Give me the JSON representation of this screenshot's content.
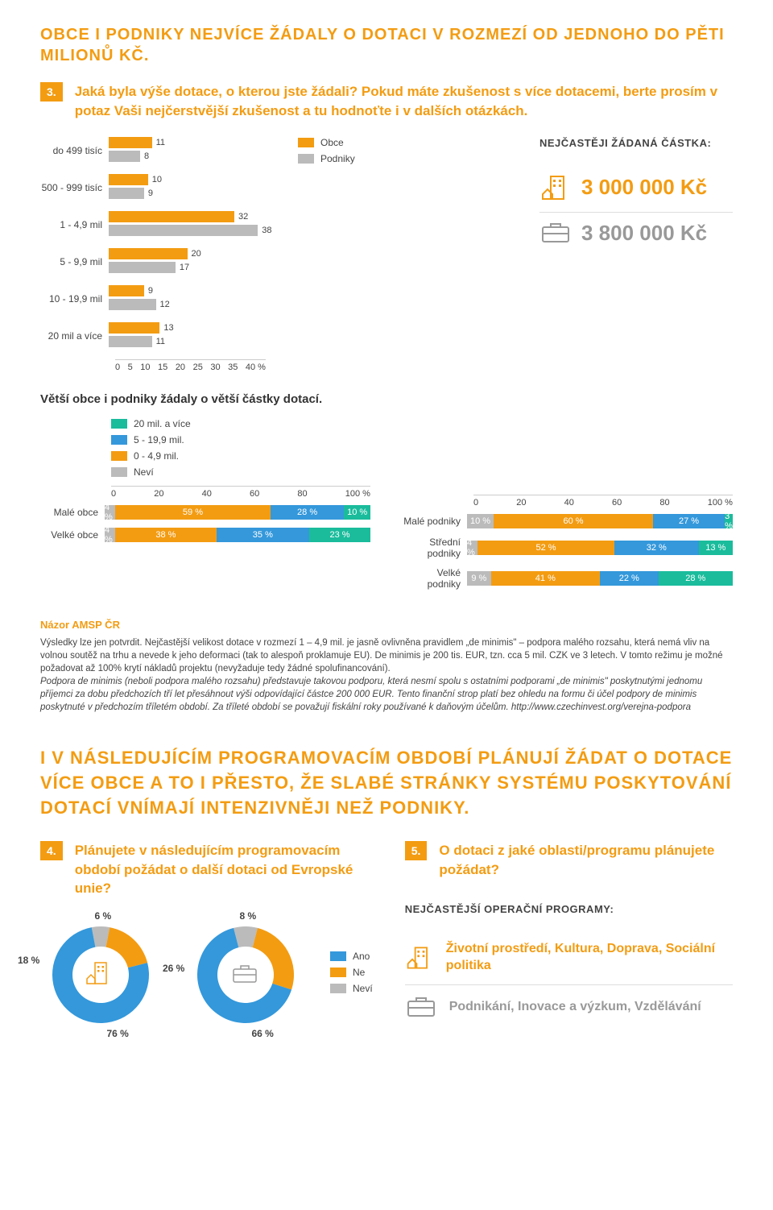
{
  "colors": {
    "orange": "#f39c12",
    "gray": "#bbbbbb",
    "darkgray": "#999999",
    "blue": "#3498db",
    "green": "#1abc9c",
    "text": "#444444"
  },
  "title1": "OBCE I PODNIKY NEJVÍCE ŽÁDALY O DOTACI V ROZMEZÍ OD JEDNOHO DO PĚTI MILIONŮ KČ.",
  "q3_num": "3.",
  "q3_text": "Jaká byla výše dotace, o kterou jste žádali? Pokud máte zkušenost s více dotacemi, berte prosím v potaz Vaši nejčerstvější zkušenost a tu hodnoťte i v dalších otázkách.",
  "bar_chart": {
    "legend_obce": "Obce",
    "legend_podniky": "Podniky",
    "xmax": 40,
    "xticks": [
      "0",
      "5",
      "10",
      "15",
      "20",
      "25",
      "30",
      "35",
      "40 %"
    ],
    "rows": [
      {
        "label": "do 499 tisíc",
        "obce": 11,
        "podniky": 8
      },
      {
        "label": "500 - 999 tisíc",
        "obce": 10,
        "podniky": 9
      },
      {
        "label": "1 - 4,9 mil",
        "obce": 32,
        "podniky": 38
      },
      {
        "label": "5 - 9,9 mil",
        "obce": 20,
        "podniky": 17
      },
      {
        "label": "10 - 19,9 mil",
        "obce": 9,
        "podniky": 12
      },
      {
        "label": "20 mil a více",
        "obce": 13,
        "podniky": 11
      }
    ]
  },
  "freq_title": "NEJČASTĚJI ŽÁDANÁ ČÁSTKA:",
  "freq_obce": "3 000 000 Kč",
  "freq_podniky": "3 800 000 Kč",
  "subtitle1": "Větší obce i podniky žádaly o větší částky dotací.",
  "stacked_legend": [
    "20 mil. a více",
    "5 - 19,9 mil.",
    "0 - 4,9 mil.",
    "Neví"
  ],
  "stacked_legend_colors": [
    "#1abc9c",
    "#3498db",
    "#f39c12",
    "#bbbbbb"
  ],
  "stacked_left": {
    "xticks": [
      "0",
      "20",
      "40",
      "60",
      "80",
      "100 %"
    ],
    "rows": [
      {
        "label": "Malé obce",
        "segs": [
          {
            "v": 4,
            "c": "#bbbbbb",
            "t": "4 %"
          },
          {
            "v": 59,
            "c": "#f39c12",
            "t": "59 %"
          },
          {
            "v": 28,
            "c": "#3498db",
            "t": "28 %"
          },
          {
            "v": 10,
            "c": "#1abc9c",
            "t": "10 %"
          }
        ]
      },
      {
        "label": "Velké obce",
        "segs": [
          {
            "v": 4,
            "c": "#bbbbbb",
            "t": "4 %"
          },
          {
            "v": 38,
            "c": "#f39c12",
            "t": "38 %"
          },
          {
            "v": 35,
            "c": "#3498db",
            "t": "35 %"
          },
          {
            "v": 23,
            "c": "#1abc9c",
            "t": "23 %"
          }
        ]
      }
    ]
  },
  "stacked_right": {
    "xticks": [
      "0",
      "20",
      "40",
      "60",
      "80",
      "100 %"
    ],
    "rows": [
      {
        "label": "Malé podniky",
        "segs": [
          {
            "v": 10,
            "c": "#bbbbbb",
            "t": "10 %"
          },
          {
            "v": 60,
            "c": "#f39c12",
            "t": "60 %"
          },
          {
            "v": 27,
            "c": "#3498db",
            "t": "27 %"
          },
          {
            "v": 3,
            "c": "#1abc9c",
            "t": "3 %"
          }
        ]
      },
      {
        "label": "Střední podniky",
        "segs": [
          {
            "v": 4,
            "c": "#bbbbbb",
            "t": "4 %"
          },
          {
            "v": 52,
            "c": "#f39c12",
            "t": "52 %"
          },
          {
            "v": 32,
            "c": "#3498db",
            "t": "32 %"
          },
          {
            "v": 13,
            "c": "#1abc9c",
            "t": "13 %"
          }
        ]
      },
      {
        "label": "Velké podniky",
        "segs": [
          {
            "v": 9,
            "c": "#bbbbbb",
            "t": "9 %"
          },
          {
            "v": 41,
            "c": "#f39c12",
            "t": "41 %"
          },
          {
            "v": 22,
            "c": "#3498db",
            "t": "22 %"
          },
          {
            "v": 28,
            "c": "#1abc9c",
            "t": "28 %"
          }
        ]
      }
    ]
  },
  "opinion_heading": "Názor AMSP ČR",
  "opinion_p1": "Výsledky lze jen potvrdit. Nejčastější velikost dotace v rozmezí 1 – 4,9 mil. je jasně ovlivněna pravidlem „de minimis\" – podpora malého rozsahu, která nemá vliv na volnou soutěž na trhu a nevede k jeho deformaci (tak to alespoň proklamuje EU). De minimis je 200 tis. EUR, tzn. cca 5 mil. CZK ve 3 letech. V tomto režimu je možné požadovat až 100% krytí nákladů projektu (nevyžaduje tedy žádné spolufinancování).",
  "opinion_p2": "Podpora de minimis (neboli podpora malého rozsahu) představuje takovou podporu, která nesmí spolu s ostatními podporami „de minimis\" poskytnutými jednomu příjemci za dobu předchozích tří let přesáhnout výši odpovídající částce 200 000 EUR. Tento finanční strop platí bez ohledu na formu či účel podpory de minimis poskytnuté v předchozím tříletém období. Za tříleté období se považují fiskální roky používané k daňovým účelům. http://www.czechinvest.org/verejna-podpora",
  "title2": "I V NÁSLEDUJÍCÍM PROGRAMOVACÍM OBDOBÍ PLÁNUJÍ ŽÁDAT O DOTACE VÍCE OBCE A TO I PŘESTO, ŽE SLABÉ STRÁNKY SYSTÉMU POSKYTOVÁNÍ DOTACÍ VNÍMAJÍ INTENZIVNĚJI NEŽ PODNIKY.",
  "q4_num": "4.",
  "q4_text": "Plánujete v následujícím programovacím období požádat o další dotaci od Evropské unie?",
  "q5_num": "5.",
  "q5_text": "O dotaci z jaké oblasti/programu plánujete požádat?",
  "donut_legend": [
    {
      "label": "Ano",
      "color": "#3498db"
    },
    {
      "label": "Ne",
      "color": "#f39c12"
    },
    {
      "label": "Neví",
      "color": "#bbbbbb"
    }
  ],
  "donut_obce": {
    "ano": 76,
    "ne": 18,
    "nevi": 6
  },
  "donut_podniky": {
    "ano": 66,
    "ne": 26,
    "nevi": 8
  },
  "op_title": "NEJČASTĚJŠÍ OPERAČNÍ PROGRAMY:",
  "op_obce": "Životní prostředí, Kultura, Doprava, Sociální politika",
  "op_podniky": "Podnikání, Inovace a výzkum, Vzdělávání"
}
